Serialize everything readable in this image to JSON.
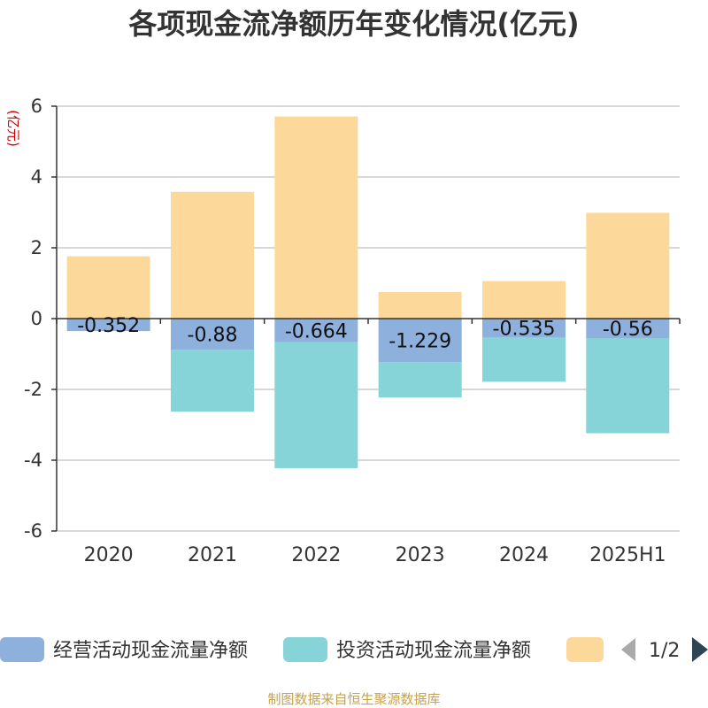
{
  "colors": {
    "operating": "#8eb0dc",
    "investing": "#86d4d7",
    "financing": "#fdd89b",
    "grid": "#cccccc",
    "axis": "#333333",
    "pager_active": "#2f4554",
    "pager_inactive": "#aaaaaa"
  },
  "legend": {
    "items": [
      "经营活动现金流量净额",
      "投资活动现金流量净额",
      ""
    ],
    "page": "1/2"
  },
  "source": "制图数据来自恒生聚源数据库",
  "chart_data": {
    "type": "bar",
    "stacked": true,
    "title": "各项现金流净额历年变化情况(亿元)",
    "ylabel": "(亿元)",
    "ylim": [
      -6,
      6
    ],
    "yticks": [
      6,
      4,
      2,
      0,
      -2,
      -4,
      -6
    ],
    "grid": true,
    "legend_position": "bottom",
    "categories": [
      "2020",
      "2021",
      "2022",
      "2023",
      "2024",
      "2025H1"
    ],
    "series": [
      {
        "name": "经营活动现金流量净额",
        "values": [
          -0.352,
          -0.88,
          -0.664,
          -1.229,
          -0.535,
          -0.56
        ],
        "labels": [
          "-0.352",
          "-0.88",
          "-0.664",
          "-1.229",
          "-0.535",
          "-0.56"
        ]
      },
      {
        "name": "投资活动现金流量净额",
        "values": [
          0.0,
          -1.75,
          -3.56,
          -1.0,
          -1.25,
          -2.68
        ]
      },
      {
        "name": "",
        "values": [
          1.76,
          3.58,
          5.71,
          0.75,
          1.06,
          2.99
        ]
      }
    ]
  }
}
